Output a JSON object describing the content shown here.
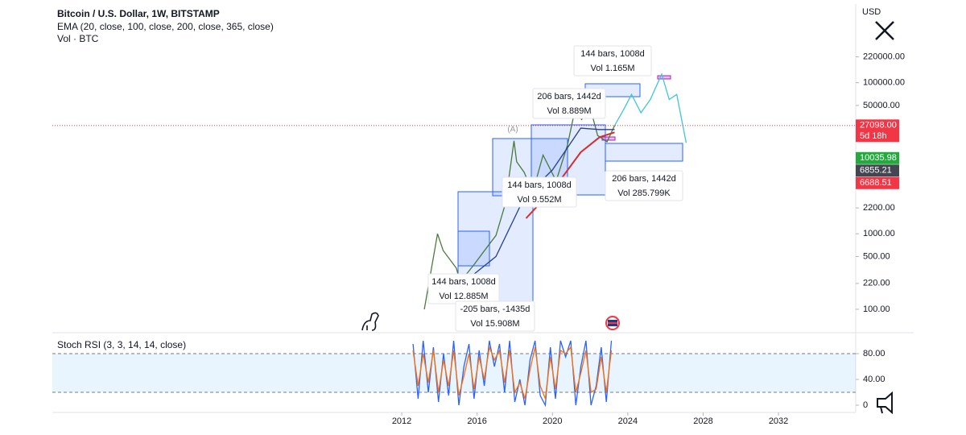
{
  "chart_data": [
    {
      "type": "line",
      "title": "Bitcoin / U.S. Dollar, 1W, BITSTAMP",
      "indicators": [
        "EMA (20, close, 100, close, 200, close, 365, close)",
        "Vol · BTC"
      ],
      "axis_unit": "USD",
      "marker": "(A)",
      "log_scale": true,
      "xlim": [
        1993.45,
        2036.1
      ],
      "ylim": [
        49,
        1100000
      ],
      "xticks": [
        2012,
        2016,
        2020,
        2024,
        2028,
        2032
      ],
      "yticks": [
        {
          "value": 100,
          "label": "100.00"
        },
        {
          "value": 220,
          "label": "220.00"
        },
        {
          "value": 500,
          "label": "500.00"
        },
        {
          "value": 1000,
          "label": "1000.00"
        },
        {
          "value": 2200,
          "label": "2200.00"
        },
        {
          "value": 50000,
          "label": "50000.00"
        },
        {
          "value": 100000,
          "label": "100000.00"
        },
        {
          "value": 220000,
          "label": "220000.00"
        }
      ],
      "series": [
        {
          "color": "#4a7a3a",
          "x": [
            2013.2,
            2013.9,
            2014.2,
            2014.9,
            2015.1,
            2015.8,
            2016.5,
            2017.0,
            2017.5,
            2017.96,
            2018.1,
            2018.5,
            2018.95,
            2019.5,
            2020.2,
            2020.8,
            2021.3,
            2021.55,
            2021.85,
            2022.4,
            2022.9,
            2023.3
          ],
          "values": [
            100,
            1000,
            600,
            350,
            230,
            380,
            650,
            950,
            2500,
            17000,
            9000,
            6500,
            3500,
            11000,
            5000,
            15000,
            58000,
            32000,
            65000,
            20000,
            16500,
            27098
          ]
        },
        {
          "color": "#3fc6d6",
          "x": [
            2023.3,
            2023.8,
            2024.2,
            2024.7,
            2025.2,
            2025.8,
            2026.2,
            2026.6,
            2027.1
          ],
          "values": [
            27098,
            45000,
            70000,
            40000,
            60000,
            130000,
            60000,
            70000,
            16000
          ]
        },
        {
          "color": "#2a3f8f",
          "x": [
            2014.0,
            2015.5,
            2017.0,
            2018.5,
            2020.0,
            2021.5,
            2022.5,
            2023.3
          ],
          "values": [
            150,
            250,
            500,
            3000,
            7000,
            25000,
            24000,
            24000
          ]
        },
        {
          "color": "#d32f2f",
          "x": [
            2018.6,
            2019.5,
            2020.5,
            2021.5,
            2022.5,
            2023.3
          ],
          "values": [
            1600,
            2800,
            5500,
            12000,
            19000,
            22000
          ]
        }
      ],
      "price_labels": [
        {
          "value": 27098,
          "label": "27098.00",
          "sub": "5d 18h",
          "color": "#f23645"
        },
        {
          "value": 10035.98,
          "label": "10035.98",
          "color": "#22ab3c"
        },
        {
          "value": 6855.21,
          "label": "6855.21",
          "color": "#434651"
        },
        {
          "value": 6688.51,
          "label": "6688.51",
          "color": "#f23645"
        }
      ],
      "annotations": [
        {
          "lines": [
            "144 bars, 1008d",
            "Vol 1.165M"
          ]
        },
        {
          "lines": [
            "206 bars, 1442d",
            "Vol 8.889M"
          ]
        },
        {
          "lines": [
            "144 bars, 1008d",
            "Vol 9.552M"
          ]
        },
        {
          "lines": [
            "206 bars, 1442d",
            "Vol 285.799K"
          ]
        },
        {
          "lines": [
            "144 bars, 1008d",
            "Vol 12.885M"
          ]
        },
        {
          "lines": [
            "-205 bars, -1435d",
            "Vol 15.908M"
          ]
        }
      ]
    },
    {
      "type": "line",
      "title": "Stoch RSI (3, 3, 14, 14, close)",
      "ylim": [
        -11.25,
        110
      ],
      "yticks": [
        {
          "value": 80,
          "label": "80.00"
        },
        {
          "value": 40,
          "label": "40.00"
        },
        0
      ],
      "bands": [
        20,
        80
      ],
      "series": [
        {
          "color": "#2962ff",
          "x": [
            2012.6,
            2012.87,
            2013.14,
            2013.41,
            2013.68,
            2013.95,
            2014.22,
            2014.49,
            2014.76,
            2015.03,
            2015.3,
            2015.57,
            2015.84,
            2016.11,
            2016.38,
            2016.65,
            2016.92,
            2017.19,
            2017.46,
            2017.73,
            2018.0,
            2018.27,
            2018.54,
            2018.81,
            2019.08,
            2019.35,
            2019.62,
            2019.89,
            2020.16,
            2020.43,
            2020.7,
            2020.97,
            2021.24,
            2021.51,
            2021.78,
            2022.05,
            2022.32,
            2022.59,
            2022.86,
            2023.13
          ],
          "values": [
            95,
            10,
            100,
            20,
            90,
            5,
            80,
            15,
            100,
            0,
            60,
            95,
            10,
            85,
            30,
            100,
            60,
            95,
            20,
            100,
            5,
            40,
            0,
            70,
            100,
            15,
            0,
            90,
            10,
            100,
            75,
            100,
            0,
            60,
            100,
            0,
            30,
            90,
            5,
            100
          ]
        },
        {
          "color": "#ff6d00",
          "x": [
            2012.6,
            2012.87,
            2013.14,
            2013.41,
            2013.68,
            2013.95,
            2014.22,
            2014.49,
            2014.76,
            2015.03,
            2015.3,
            2015.57,
            2015.84,
            2016.11,
            2016.38,
            2016.65,
            2016.92,
            2017.19,
            2017.46,
            2017.73,
            2018.0,
            2018.27,
            2018.54,
            2018.81,
            2019.08,
            2019.35,
            2019.62,
            2019.89,
            2020.16,
            2020.43,
            2020.7,
            2020.97,
            2021.24,
            2021.51,
            2021.78,
            2022.05,
            2022.32,
            2022.59,
            2022.86,
            2023.13
          ],
          "values": [
            85,
            30,
            80,
            35,
            85,
            20,
            70,
            30,
            85,
            15,
            45,
            80,
            25,
            75,
            40,
            90,
            70,
            85,
            35,
            85,
            20,
            35,
            10,
            55,
            90,
            30,
            10,
            75,
            25,
            85,
            80,
            90,
            20,
            50,
            85,
            20,
            25,
            75,
            20,
            85
          ]
        }
      ]
    }
  ]
}
